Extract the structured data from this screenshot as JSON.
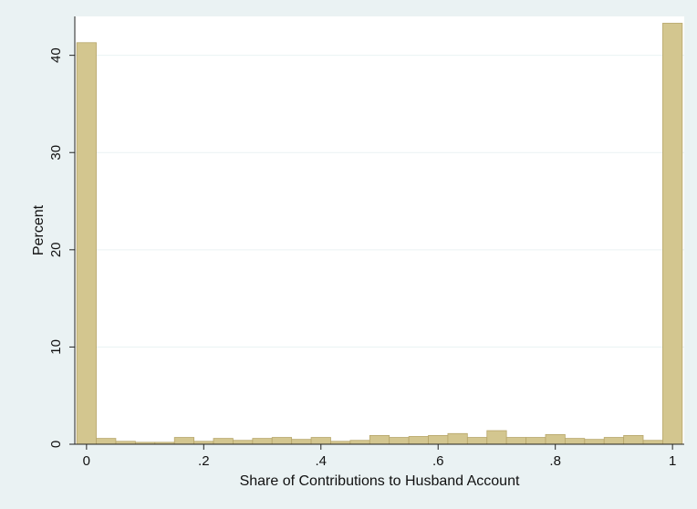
{
  "chart_data": {
    "type": "bar",
    "xlabel": "Share of Contributions to Husband Account",
    "ylabel": "Percent",
    "xlim": [
      -0.02,
      1.02
    ],
    "ylim": [
      0,
      44
    ],
    "x_ticks": [
      {
        "value": 0,
        "label": "0"
      },
      {
        "value": 0.2,
        "label": ".2"
      },
      {
        "value": 0.4,
        "label": ".4"
      },
      {
        "value": 0.6,
        "label": ".6"
      },
      {
        "value": 0.8,
        "label": ".8"
      },
      {
        "value": 1,
        "label": "1"
      }
    ],
    "y_ticks": [
      {
        "value": 0,
        "label": "0"
      },
      {
        "value": 10,
        "label": "10"
      },
      {
        "value": 20,
        "label": "20"
      },
      {
        "value": 30,
        "label": "30"
      },
      {
        "value": 40,
        "label": "40"
      }
    ],
    "grid": true,
    "bin_width": 0.0333,
    "bins": [
      {
        "x": 0.0,
        "value": 41.3
      },
      {
        "x": 0.0333,
        "value": 0.6
      },
      {
        "x": 0.0667,
        "value": 0.3
      },
      {
        "x": 0.1,
        "value": 0.2
      },
      {
        "x": 0.1333,
        "value": 0.2
      },
      {
        "x": 0.1667,
        "value": 0.7
      },
      {
        "x": 0.2,
        "value": 0.3
      },
      {
        "x": 0.2333,
        "value": 0.6
      },
      {
        "x": 0.2667,
        "value": 0.4
      },
      {
        "x": 0.3,
        "value": 0.6
      },
      {
        "x": 0.3333,
        "value": 0.7
      },
      {
        "x": 0.3667,
        "value": 0.5
      },
      {
        "x": 0.4,
        "value": 0.7
      },
      {
        "x": 0.4333,
        "value": 0.3
      },
      {
        "x": 0.4667,
        "value": 0.4
      },
      {
        "x": 0.5,
        "value": 0.9
      },
      {
        "x": 0.5333,
        "value": 0.7
      },
      {
        "x": 0.5667,
        "value": 0.8
      },
      {
        "x": 0.6,
        "value": 0.9
      },
      {
        "x": 0.6333,
        "value": 1.1
      },
      {
        "x": 0.6667,
        "value": 0.7
      },
      {
        "x": 0.7,
        "value": 1.4
      },
      {
        "x": 0.7333,
        "value": 0.7
      },
      {
        "x": 0.7667,
        "value": 0.7
      },
      {
        "x": 0.8,
        "value": 1.0
      },
      {
        "x": 0.8333,
        "value": 0.6
      },
      {
        "x": 0.8667,
        "value": 0.5
      },
      {
        "x": 0.9,
        "value": 0.7
      },
      {
        "x": 0.9333,
        "value": 0.9
      },
      {
        "x": 0.9667,
        "value": 0.4
      },
      {
        "x": 1.0,
        "value": 43.3
      }
    ]
  },
  "colors": {
    "outer_background": "#EAF2F3",
    "plot_background": "#FFFFFF",
    "bar_fill": "#D3C68F",
    "bar_stroke": "#B7A66A",
    "grid": "#EAF2F3",
    "axis": "#222222"
  }
}
